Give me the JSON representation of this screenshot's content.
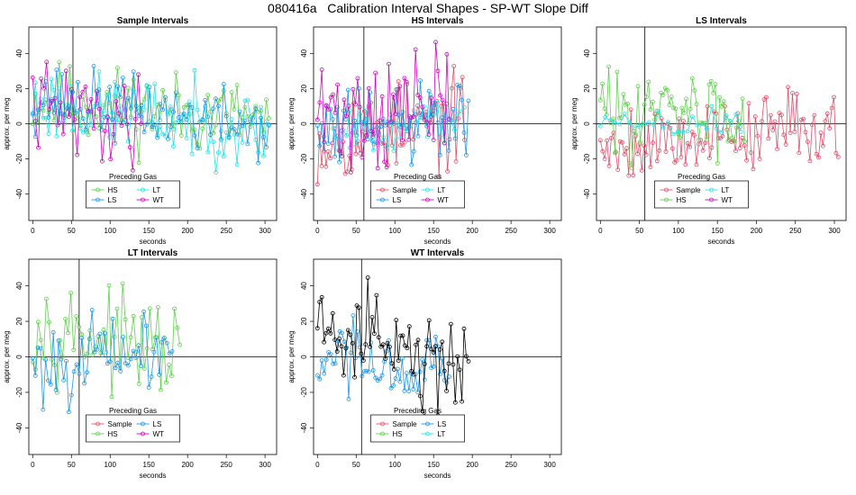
{
  "main_title": "080416a   Calibration Interval Shapes - SP-WT Slope Diff",
  "colors": {
    "Sample": "#DF536B",
    "HS": "#61D04F",
    "LS": "#2297E6",
    "LT": "#28E2E5",
    "WT": "#CD0BBC",
    "black": "#000000"
  },
  "chart_data": [
    {
      "type": "line",
      "title": "Sample Intervals",
      "xlabel": "seconds",
      "ylabel": "approx. per meg",
      "xlim": [
        -5,
        315
      ],
      "ylim": [
        -55,
        55
      ],
      "xticks": [
        0,
        50,
        100,
        150,
        200,
        250,
        300
      ],
      "yticks": [
        -40,
        -20,
        0,
        20,
        40
      ],
      "vline": 52,
      "hline": 0,
      "legend": {
        "title": "Preceding Gas",
        "placement": "bottom-center",
        "entries": [
          "HS",
          "LT",
          "LS",
          "WT"
        ]
      },
      "series": [
        {
          "name": "HS",
          "seed": 11,
          "x0": 0,
          "x1": 305,
          "n": 90,
          "amp": 16,
          "trend": [
            14,
            2
          ]
        },
        {
          "name": "LT",
          "seed": 23,
          "x0": 0,
          "x1": 305,
          "n": 90,
          "amp": 15,
          "trend": [
            12,
            -4
          ]
        },
        {
          "name": "LS",
          "seed": 37,
          "x0": 0,
          "x1": 305,
          "n": 90,
          "amp": 14,
          "trend": [
            15,
            -2
          ]
        },
        {
          "name": "WT",
          "seed": 41,
          "x0": 0,
          "x1": 140,
          "n": 40,
          "amp": 18,
          "trend": [
            10,
            0
          ]
        }
      ]
    },
    {
      "type": "line",
      "title": "HS Intervals",
      "xlabel": "seconds",
      "ylabel": "approx. per meg",
      "xlim": [
        -5,
        315
      ],
      "ylim": [
        -55,
        55
      ],
      "xticks": [
        0,
        50,
        100,
        150,
        200,
        250,
        300
      ],
      "yticks": [
        -40,
        -20,
        0,
        20,
        40
      ],
      "vline": 60,
      "hline": 0,
      "legend": {
        "title": "Preceding Gas",
        "placement": "bottom-center",
        "entries": [
          "Sample",
          "LT",
          "LS",
          "WT"
        ]
      },
      "series": [
        {
          "name": "Sample",
          "seed": 53,
          "x0": 0,
          "x1": 190,
          "n": 70,
          "amp": 18,
          "trend": [
            -8,
            2
          ]
        },
        {
          "name": "LS",
          "seed": 61,
          "x0": 0,
          "x1": 195,
          "n": 70,
          "amp": 18,
          "trend": [
            -5,
            0
          ]
        },
        {
          "name": "LT",
          "seed": 67,
          "x0": 20,
          "x1": 190,
          "n": 40,
          "amp": 10,
          "trend": [
            0,
            0
          ]
        },
        {
          "name": "WT",
          "seed": 71,
          "x0": 0,
          "x1": 170,
          "n": 60,
          "amp": 24,
          "trend": [
            5,
            10
          ]
        }
      ]
    },
    {
      "type": "line",
      "title": "LS Intervals",
      "xlabel": "seconds",
      "ylabel": "approx. per meg",
      "xlim": [
        -5,
        315
      ],
      "ylim": [
        -55,
        55
      ],
      "xticks": [
        0,
        50,
        100,
        150,
        200,
        250,
        300
      ],
      "yticks": [
        -40,
        -20,
        0,
        20,
        40
      ],
      "vline": 57,
      "hline": 0,
      "legend": {
        "title": "Preceding Gas",
        "placement": "bottom-center",
        "entries": [
          "Sample",
          "LT",
          "HS",
          "WT"
        ]
      },
      "series": [
        {
          "name": "Sample",
          "seed": 79,
          "x0": 0,
          "x1": 305,
          "n": 110,
          "amp": 15,
          "trend": [
            -12,
            0
          ]
        },
        {
          "name": "HS",
          "seed": 83,
          "x0": 0,
          "x1": 185,
          "n": 70,
          "amp": 17,
          "trend": [
            8,
            4
          ]
        },
        {
          "name": "LT",
          "seed": 89,
          "x0": 0,
          "x1": 180,
          "n": 30,
          "amp": 8,
          "trend": [
            0,
            0
          ]
        }
      ]
    },
    {
      "type": "line",
      "title": "LT Intervals",
      "xlabel": "seconds",
      "ylabel": "approx. per meg",
      "xlim": [
        -5,
        315
      ],
      "ylim": [
        -55,
        55
      ],
      "xticks": [
        0,
        50,
        100,
        150,
        200,
        250,
        300
      ],
      "yticks": [
        -40,
        -20,
        0,
        20,
        40
      ],
      "vline": 60,
      "hline": 0,
      "legend": {
        "title": "Preceding Gas",
        "placement": "bottom-center",
        "entries": [
          "Sample",
          "LS",
          "HS",
          "WT"
        ]
      },
      "series": [
        {
          "name": "HS",
          "seed": 97,
          "x0": 0,
          "x1": 190,
          "n": 55,
          "amp": 18,
          "trend": [
            20,
            0
          ]
        },
        {
          "name": "LS",
          "seed": 101,
          "x0": 0,
          "x1": 180,
          "n": 55,
          "amp": 16,
          "trend": [
            -5,
            5
          ]
        }
      ]
    },
    {
      "type": "line",
      "title": "WT Intervals",
      "xlabel": "seconds",
      "ylabel": "approx. per meg",
      "xlim": [
        -5,
        315
      ],
      "ylim": [
        -55,
        55
      ],
      "xticks": [
        0,
        50,
        100,
        150,
        200,
        250,
        300
      ],
      "yticks": [
        -40,
        -20,
        0,
        20,
        40
      ],
      "vline": 57,
      "hline": 0,
      "legend": {
        "title": "Preceding Gas",
        "placement": "bottom-center",
        "entries": [
          "Sample",
          "LS",
          "HS",
          "LT"
        ]
      },
      "series": [
        {
          "name": "LS",
          "seed": 103,
          "x0": 0,
          "x1": 170,
          "n": 60,
          "amp": 15,
          "trend": [
            -5,
            -10
          ]
        },
        {
          "name": "black",
          "seed": 107,
          "x0": 0,
          "x1": 195,
          "n": 70,
          "amp": 18,
          "trend": [
            20,
            -10
          ]
        }
      ]
    }
  ]
}
